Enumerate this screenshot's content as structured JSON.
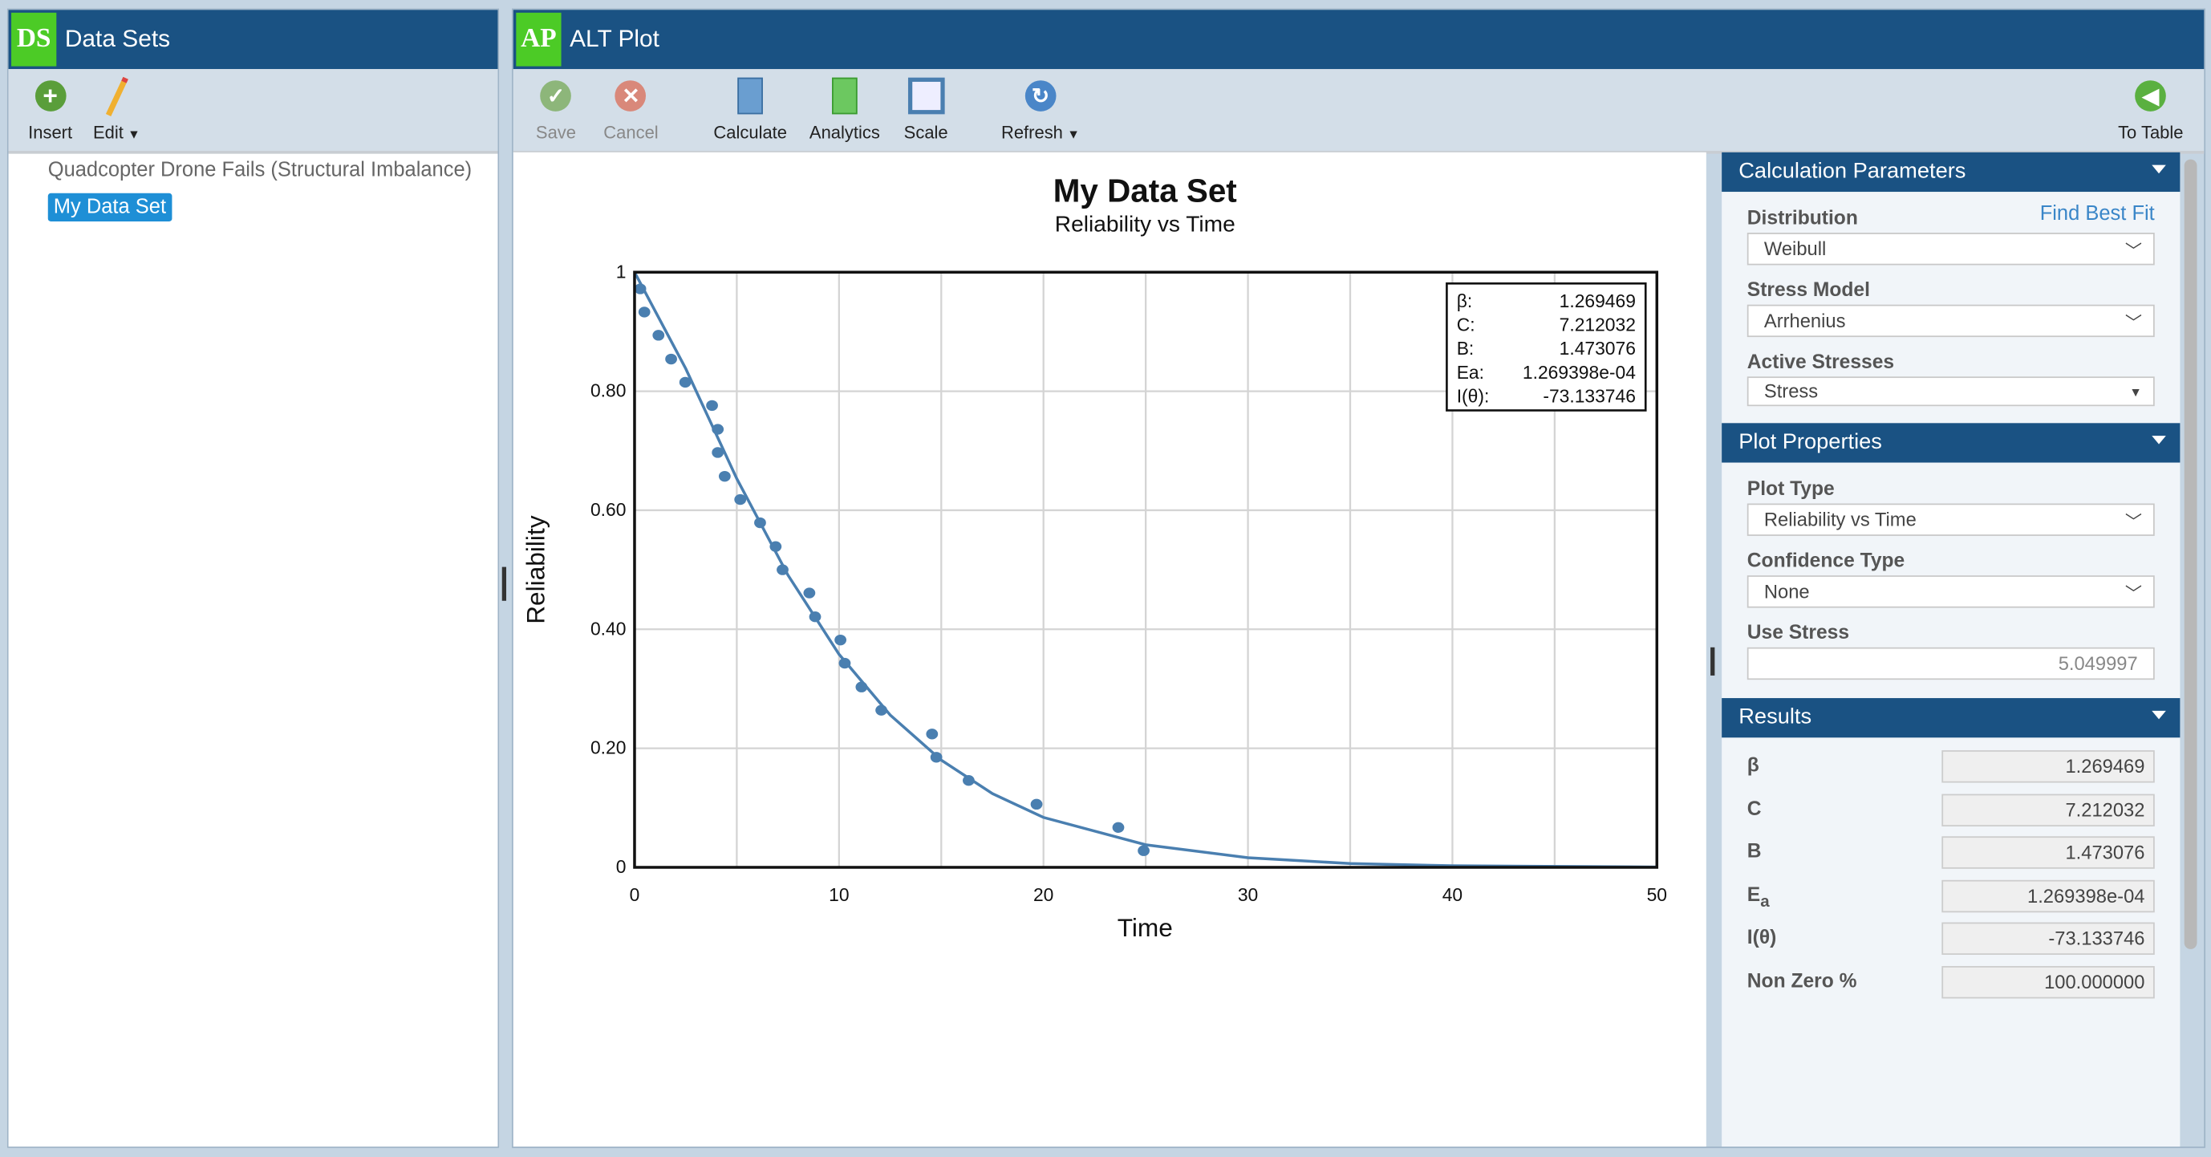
{
  "datasets_panel": {
    "logo": "DS",
    "title": "Data Sets",
    "toolbar": {
      "insert": "Insert",
      "edit": "Edit"
    },
    "items": [
      {
        "label": "Quadcopter Drone Fails (Structural Imbalance)",
        "selected": false
      },
      {
        "label": "My Data Set",
        "selected": true
      }
    ]
  },
  "plot_panel": {
    "logo": "AP",
    "title": "ALT Plot",
    "toolbar": {
      "save": "Save",
      "cancel": "Cancel",
      "calculate": "Calculate",
      "analytics": "Analytics",
      "scale": "Scale",
      "refresh": "Refresh",
      "to_table": "To Table"
    }
  },
  "calc_params": {
    "title": "Calculation Parameters",
    "distribution_label": "Distribution",
    "find_best_fit": "Find Best Fit",
    "distribution": "Weibull",
    "stress_model_label": "Stress Model",
    "stress_model": "Arrhenius",
    "active_stresses_label": "Active Stresses",
    "active_stresses": "Stress"
  },
  "plot_props": {
    "title": "Plot Properties",
    "plot_type_label": "Plot Type",
    "plot_type": "Reliability vs Time",
    "confidence_type_label": "Confidence Type",
    "confidence_type": "None",
    "use_stress_label": "Use Stress",
    "use_stress": "5.049997"
  },
  "results": {
    "title": "Results",
    "rows": [
      {
        "label": "β",
        "value": "1.269469"
      },
      {
        "label": "C",
        "value": "7.212032"
      },
      {
        "label": "B",
        "value": "1.473076"
      },
      {
        "label": "E",
        "sub": "a",
        "value": "1.269398e-04"
      },
      {
        "label": "I(θ)",
        "value": "-73.133746"
      },
      {
        "label": "Non Zero %",
        "value": "100.000000"
      }
    ]
  },
  "colors": {
    "header": "#1a5283",
    "logo": "#4ccb26",
    "series": "#4a7fb0",
    "selected": "#1e8fd6",
    "link": "#3a86c8"
  },
  "chart_data": {
    "type": "scatter",
    "title": "My Data Set",
    "subtitle": "Reliability vs Time",
    "xlabel": "Time",
    "ylabel": "Reliability",
    "xlim": [
      0,
      50
    ],
    "ylim": [
      0,
      1
    ],
    "grid": true,
    "xticks": [
      "0",
      "10",
      "20",
      "30",
      "40",
      "50"
    ],
    "yticks": [
      "0",
      "0.20",
      "0.40",
      "0.60",
      "0.80",
      "1"
    ],
    "legend": {
      "placement": "top-right",
      "rows": [
        {
          "label": "β:",
          "value": "1.269469"
        },
        {
          "label": "C:",
          "value": "7.212032"
        },
        {
          "label": "B:",
          "value": "1.473076"
        },
        {
          "label": "Ea:",
          "value": "1.269398e-04"
        },
        {
          "label": "I(θ):",
          "value": "-73.133746"
        }
      ]
    },
    "points": {
      "x": [
        0.28,
        0.48,
        1.17,
        1.79,
        2.48,
        3.79,
        4.07,
        4.07,
        4.41,
        5.17,
        6.14,
        6.9,
        7.24,
        8.55,
        8.83,
        10.07,
        10.28,
        11.1,
        12.07,
        14.55,
        14.76,
        16.34,
        19.66,
        23.66,
        24.9
      ],
      "y": [
        0.972,
        0.933,
        0.894,
        0.854,
        0.815,
        0.776,
        0.736,
        0.697,
        0.657,
        0.618,
        0.579,
        0.539,
        0.5,
        0.461,
        0.421,
        0.382,
        0.343,
        0.303,
        0.264,
        0.224,
        0.185,
        0.146,
        0.106,
        0.067,
        0.028
      ]
    },
    "fit_curve": {
      "x": [
        0,
        2.5,
        5,
        7.5,
        10,
        12.5,
        15,
        17.5,
        20,
        25,
        30,
        35,
        40,
        50
      ],
      "y": [
        1,
        0.838,
        0.653,
        0.491,
        0.358,
        0.256,
        0.18,
        0.124,
        0.084,
        0.038,
        0.016,
        0.0065,
        0.0026,
        0.0004
      ]
    }
  }
}
